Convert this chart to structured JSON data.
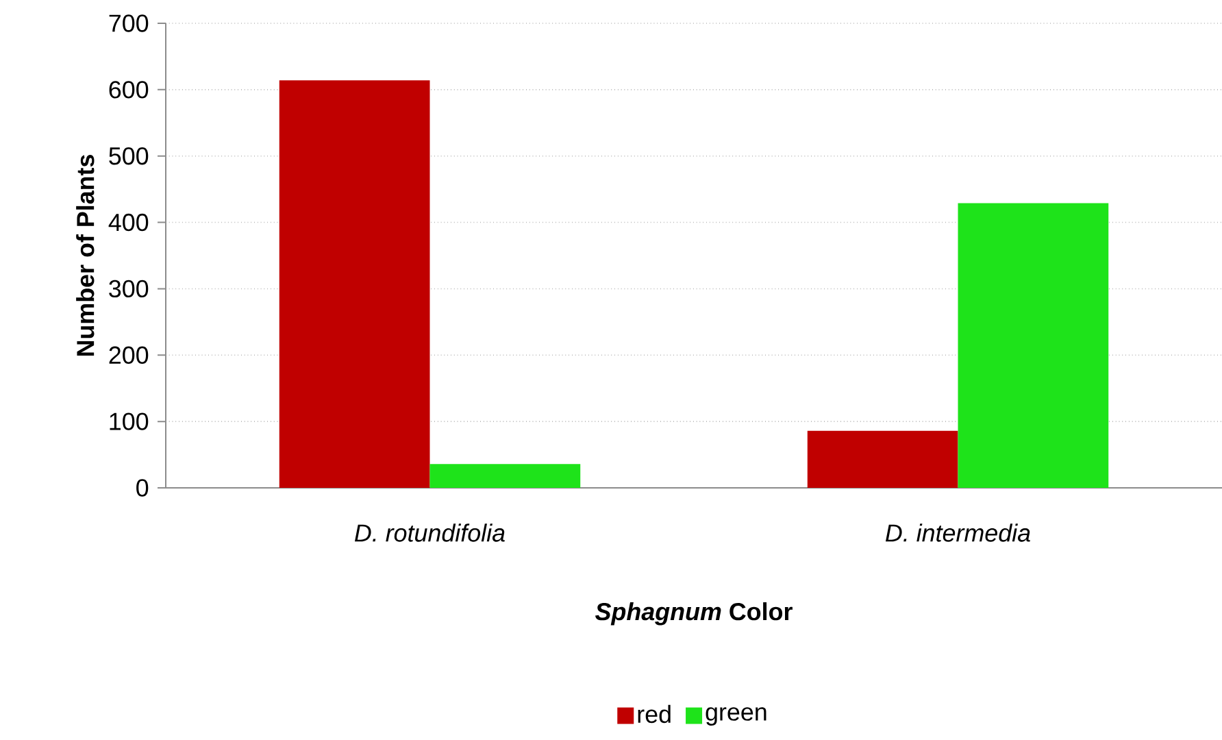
{
  "chart_data": {
    "type": "bar",
    "xlabel": "*Sphagnum* Color",
    "ylabel": "Number of Plants",
    "categories": [
      "D. rotundifolia",
      "D. intermedia"
    ],
    "series": [
      {
        "name": "red",
        "color": "#c00000",
        "values": [
          614,
          86
        ]
      },
      {
        "name": "green",
        "color": "#1ee31a",
        "values": [
          36,
          429
        ]
      }
    ],
    "ylim": [
      0,
      700
    ],
    "yticks": [
      0,
      100,
      200,
      300,
      400,
      500,
      600,
      700
    ],
    "grid": "y",
    "legend": "bottom"
  }
}
